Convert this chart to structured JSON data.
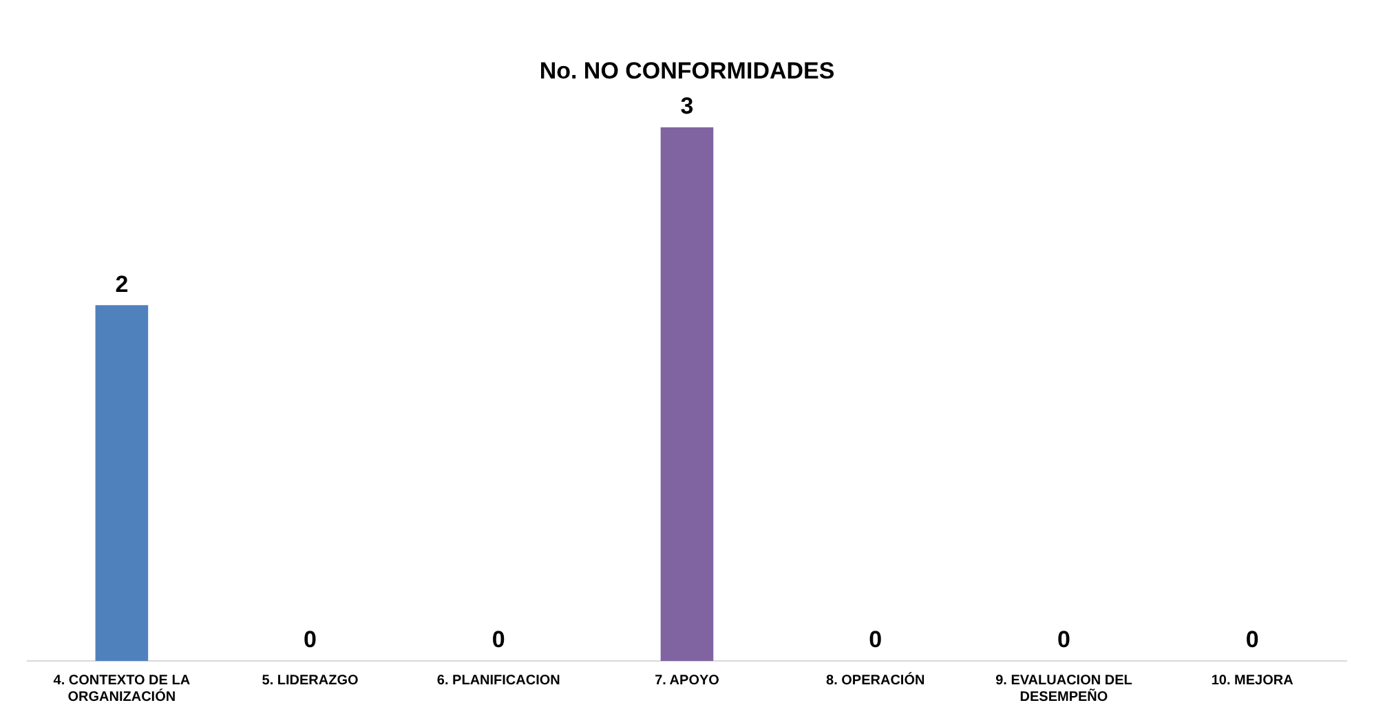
{
  "chart_data": {
    "type": "bar",
    "title": "No. NO CONFORMIDADES",
    "categories": [
      "4. CONTEXTO DE LA ORGANIZACIÓN",
      "5. LIDERAZGO",
      "6. PLANIFICACION",
      "7. APOYO",
      "8. OPERACIÓN",
      "9. EVALUACION DEL DESEMPEÑO",
      "10. MEJORA"
    ],
    "values": [
      2,
      0,
      0,
      3,
      0,
      0,
      0
    ],
    "colors": [
      "#4f81bd",
      "#4f81bd",
      "#4f81bd",
      "#8064a2",
      "#4f81bd",
      "#4f81bd",
      "#4f81bd"
    ],
    "data_labels": true,
    "grid": false,
    "legend": false
  }
}
